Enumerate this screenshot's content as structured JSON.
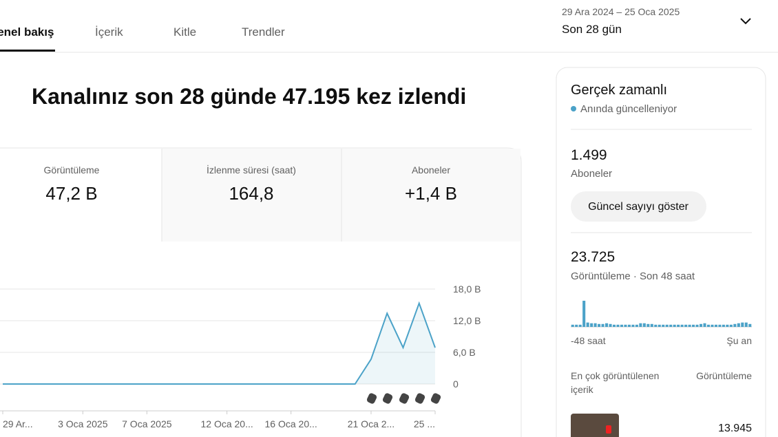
{
  "header": {
    "tabs": [
      "Genel bakış",
      "İçerik",
      "Kitle",
      "Trendler"
    ],
    "date_range": "29 Ara 2024 – 25 Oca 2025",
    "period": "Son 28 gün"
  },
  "headline": "Kanalınız son 28 günde 47.195 kez izlendi",
  "metrics": [
    {
      "label": "Görüntüleme",
      "value": "47,2 B"
    },
    {
      "label": "İzlenme süresi (saat)",
      "value": "164,8"
    },
    {
      "label": "Aboneler",
      "value": "+1,4 B"
    }
  ],
  "chart_data": {
    "type": "line",
    "categories": [
      "29 Ar...",
      null,
      null,
      null,
      null,
      "3 Oca 2025",
      null,
      null,
      null,
      "7 Oca 2025",
      null,
      null,
      null,
      null,
      "12 Oca 20...",
      null,
      null,
      null,
      "16 Oca 20...",
      null,
      null,
      null,
      null,
      "21 Oca 2...",
      null,
      null,
      null,
      "25 ..."
    ],
    "series": [
      {
        "color": "#4ba2c8",
        "values": [
          0,
          0,
          0,
          0,
          0,
          0,
          0,
          0,
          0,
          0,
          0,
          0,
          0,
          0,
          0,
          0,
          0,
          0,
          0,
          0,
          0,
          0,
          0,
          4700,
          13400,
          6900,
          15300,
          6900
        ]
      }
    ],
    "ylim": [
      0,
      18000
    ],
    "yticks": [
      0,
      {
        "value": 6000,
        "label": "6,0 B"
      },
      {
        "value": 12000,
        "label": "12,0 B"
      },
      {
        "value": 18000,
        "label": "18,0 B"
      }
    ],
    "grid": true
  },
  "realtime": {
    "title": "Gerçek zamanlı",
    "status": "Anında güncelleniyor",
    "subscribers": "1.499",
    "subscribers_label": "Aboneler",
    "button": "Güncel sayıyı göster",
    "views": "23.725",
    "views_label": "Görüntüleme · Son 48 saat",
    "chart_data": {
      "type": "bar",
      "color": "#4ba2c8",
      "values": [
        300,
        300,
        300,
        3600,
        600,
        500,
        500,
        400,
        400,
        500,
        400,
        300,
        300,
        300,
        300,
        300,
        300,
        300,
        500,
        500,
        400,
        400,
        300,
        300,
        300,
        300,
        300,
        300,
        300,
        300,
        300,
        300,
        300,
        300,
        400,
        500,
        300,
        300,
        300,
        300,
        300,
        300,
        300,
        400,
        500,
        600,
        600,
        400
      ],
      "x_start_label": "-48 saat",
      "x_end_label": "Şu an"
    },
    "top_content": {
      "column_1": "En çok görüntülenen içerik",
      "column_2": "Görüntüleme",
      "rows": [
        {
          "views": "13.945"
        }
      ]
    }
  }
}
